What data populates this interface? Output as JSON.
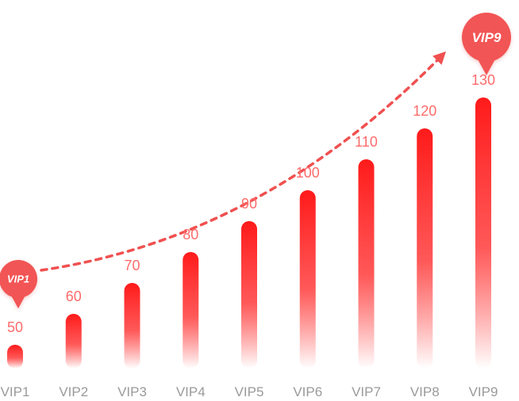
{
  "chart_data": {
    "type": "bar",
    "categories": [
      "VIP1",
      "VIP2",
      "VIP3",
      "VIP4",
      "VIP5",
      "VIP6",
      "VIP7",
      "VIP8",
      "VIP9"
    ],
    "values": [
      50,
      60,
      70,
      80,
      90,
      100,
      110,
      120,
      130
    ],
    "ylim": [
      0,
      130
    ],
    "grid": false,
    "bar_color": "#ff1f1f",
    "value_label_color": "#ff6b6b",
    "category_label_color": "#9a9a9a",
    "annotations": {
      "start_badge": "VIP1",
      "end_badge": "VIP9",
      "badge_color": "#f25454",
      "arrow_color": "#f05050"
    }
  }
}
